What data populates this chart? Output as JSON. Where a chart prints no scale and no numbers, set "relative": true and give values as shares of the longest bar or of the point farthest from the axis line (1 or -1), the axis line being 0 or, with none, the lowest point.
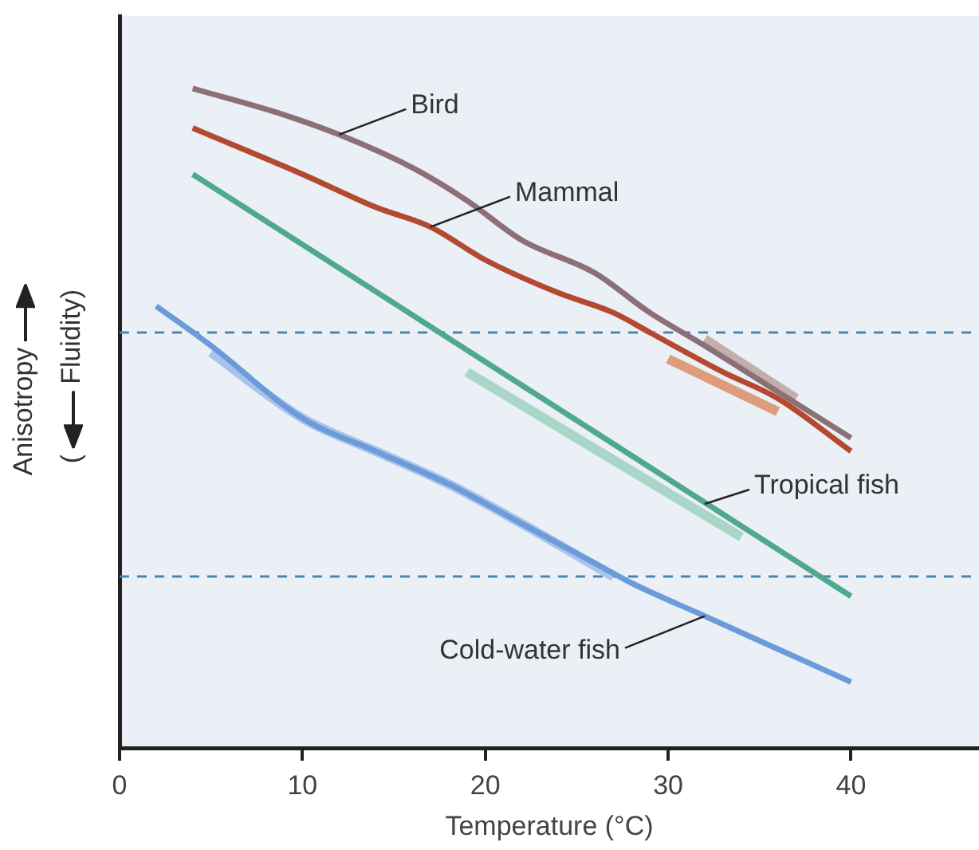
{
  "chart_data": {
    "type": "line",
    "relative": true,
    "xlabel": "Temperature (°C)",
    "ylabel": "Anisotropy (Fluidity)",
    "xlim": [
      0,
      47
    ],
    "xticks": [
      0,
      10,
      20,
      30,
      40
    ],
    "grid": false,
    "legend": false,
    "marker": "none",
    "line_style": "solid",
    "series": [
      {
        "color": "#a9c4ea",
        "x": [
          5,
          10,
          14,
          18,
          22,
          27
        ],
        "values": [
          0.6,
          0.5,
          0.45,
          0.4,
          0.34,
          0.26
        ]
      },
      {
        "color": "#a9d6c6",
        "x": [
          19,
          34
        ],
        "values": [
          0.57,
          0.32
        ]
      },
      {
        "color": "#dd9c7c",
        "x": [
          30,
          36
        ],
        "values": [
          0.59,
          0.51
        ]
      },
      {
        "color": "#c2aeab",
        "x": [
          32,
          37
        ],
        "values": [
          0.62,
          0.53
        ]
      },
      {
        "color": "#8d6f76",
        "x": [
          4,
          9,
          12,
          16,
          19,
          22,
          26,
          29,
          32,
          36,
          40
        ],
        "values": [
          1.0,
          0.96,
          0.93,
          0.88,
          0.83,
          0.77,
          0.72,
          0.66,
          0.61,
          0.54,
          0.47
        ]
      },
      {
        "color": "#b34a30",
        "x": [
          4,
          10,
          14,
          17,
          20,
          24,
          27,
          29,
          33,
          36,
          40
        ],
        "values": [
          0.94,
          0.87,
          0.82,
          0.79,
          0.74,
          0.69,
          0.66,
          0.63,
          0.57,
          0.53,
          0.45
        ]
      },
      {
        "color": "#4fa88f",
        "x": [
          4,
          40
        ],
        "values": [
          0.87,
          0.23
        ]
      },
      {
        "color": "#6b9bd9",
        "x": [
          2,
          5,
          10,
          14,
          18,
          22,
          26,
          28,
          32,
          36,
          40
        ],
        "values": [
          0.67,
          0.61,
          0.5,
          0.45,
          0.4,
          0.34,
          0.28,
          0.25,
          0.2,
          0.15,
          0.1
        ]
      }
    ],
    "ref_lines": [
      {
        "axis": "y",
        "value": 0.63,
        "color": "#4a86b0",
        "line_style": "dashed"
      },
      {
        "axis": "y",
        "value": 0.26,
        "color": "#4a86b0",
        "line_style": "dashed"
      }
    ],
    "annotations": [
      {
        "text": "Bird",
        "x": 12,
        "y": 0.93
      },
      {
        "text": "Mammal",
        "x": 17,
        "y": 0.79
      },
      {
        "text": "Tropical fish",
        "x": 32,
        "y": 0.37
      },
      {
        "text": "Cold-water fish",
        "x": 32,
        "y": 0.2
      }
    ]
  }
}
